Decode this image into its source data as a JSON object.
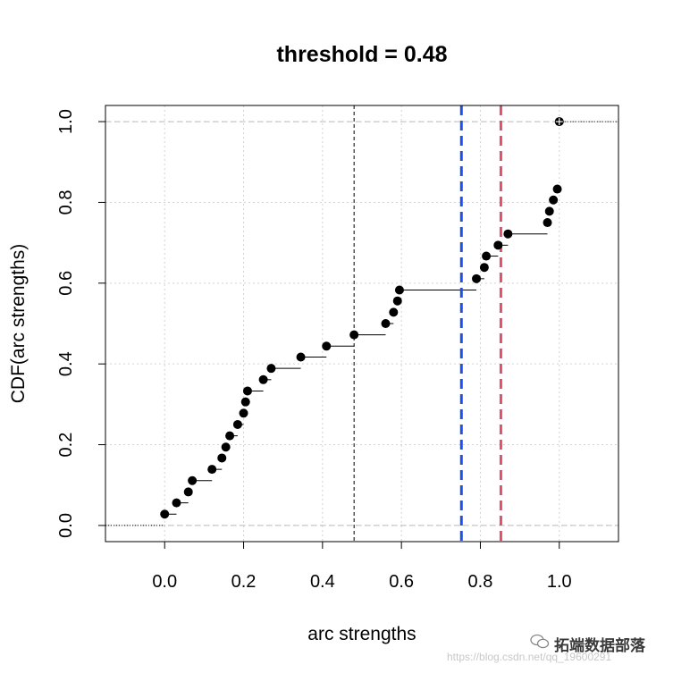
{
  "chart_data": {
    "type": "scatter",
    "title": "threshold =  0.48",
    "xlabel": "arc strengths",
    "ylabel": "CDF(arc strengths)",
    "xlim": [
      -0.15,
      1.15
    ],
    "ylim": [
      -0.04,
      1.04
    ],
    "xticks": [
      0.0,
      0.2,
      0.4,
      0.6,
      0.8,
      1.0
    ],
    "xtick_labels": [
      "0.0",
      "0.2",
      "0.4",
      "0.6",
      "0.8",
      "1.0"
    ],
    "yticks": [
      0.0,
      0.2,
      0.4,
      0.6,
      0.8,
      1.0
    ],
    "ytick_labels": [
      "0.0",
      "0.2",
      "0.4",
      "0.6",
      "0.8",
      "1.0"
    ],
    "grid": true,
    "points": [
      {
        "x": 0.0,
        "y": 0.028
      },
      {
        "x": 0.03,
        "y": 0.056
      },
      {
        "x": 0.06,
        "y": 0.083
      },
      {
        "x": 0.07,
        "y": 0.111
      },
      {
        "x": 0.12,
        "y": 0.139
      },
      {
        "x": 0.145,
        "y": 0.167
      },
      {
        "x": 0.155,
        "y": 0.194
      },
      {
        "x": 0.165,
        "y": 0.222
      },
      {
        "x": 0.185,
        "y": 0.25
      },
      {
        "x": 0.2,
        "y": 0.278
      },
      {
        "x": 0.205,
        "y": 0.306
      },
      {
        "x": 0.21,
        "y": 0.333
      },
      {
        "x": 0.25,
        "y": 0.361
      },
      {
        "x": 0.27,
        "y": 0.389
      },
      {
        "x": 0.345,
        "y": 0.417
      },
      {
        "x": 0.41,
        "y": 0.444
      },
      {
        "x": 0.48,
        "y": 0.472
      },
      {
        "x": 0.56,
        "y": 0.5
      },
      {
        "x": 0.58,
        "y": 0.528
      },
      {
        "x": 0.59,
        "y": 0.556
      },
      {
        "x": 0.595,
        "y": 0.583
      },
      {
        "x": 0.79,
        "y": 0.611
      },
      {
        "x": 0.81,
        "y": 0.639
      },
      {
        "x": 0.815,
        "y": 0.667
      },
      {
        "x": 0.845,
        "y": 0.694
      },
      {
        "x": 0.87,
        "y": 0.722
      },
      {
        "x": 0.97,
        "y": 0.75
      },
      {
        "x": 0.975,
        "y": 0.778
      },
      {
        "x": 0.985,
        "y": 0.806
      },
      {
        "x": 0.995,
        "y": 0.833
      },
      {
        "x": 1.0,
        "y": 1.0
      }
    ],
    "reference_lines": [
      {
        "x": 0.48,
        "color": "#000000",
        "style": "dashed",
        "width": 1
      },
      {
        "x": 0.752,
        "color": "#2050e0",
        "style": "dashed",
        "width": 3
      },
      {
        "x": 0.852,
        "color": "#e0506a",
        "style": "dashed",
        "width": 3
      }
    ],
    "horizontal_reference_lines": [
      {
        "y": 0.0,
        "color": "#bbbbbb",
        "style": "dashed"
      },
      {
        "y": 1.0,
        "color": "#bbbbbb",
        "style": "dashed"
      }
    ]
  },
  "watermark": {
    "name": "拓端数据部落",
    "url": "https://blog.csdn.net/qq_19600291"
  }
}
